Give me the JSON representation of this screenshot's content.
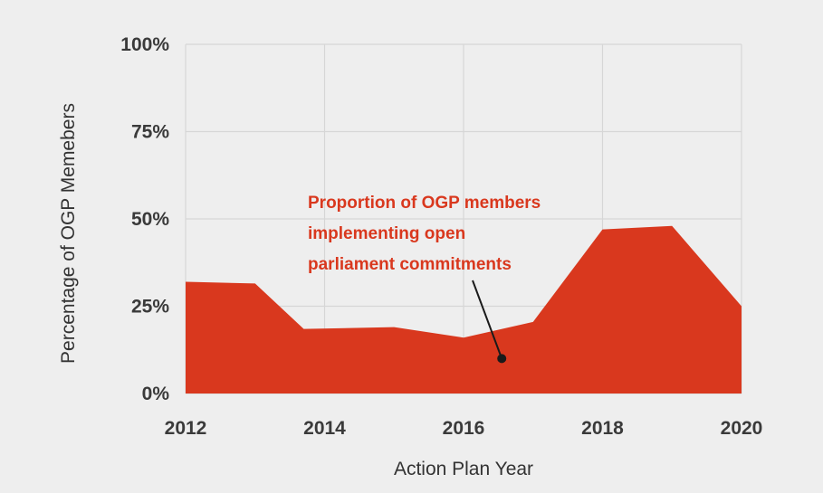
{
  "chart_data": {
    "type": "area",
    "xlabel": "Action Plan Year",
    "ylabel": "Percentage of OGP Memebers",
    "x_ticks": [
      "2012",
      "2014",
      "2016",
      "2018",
      "2020"
    ],
    "y_ticks": [
      "0%",
      "25%",
      "50%",
      "75%",
      "100%"
    ],
    "xlim": [
      2012,
      2020
    ],
    "ylim": [
      0,
      100
    ],
    "grid": true,
    "series": [
      {
        "color": "#d9381e",
        "x": [
          2012,
          2013,
          2013.7,
          2015,
          2016,
          2017,
          2018,
          2019,
          2020
        ],
        "y": [
          32,
          31.5,
          18.5,
          19,
          16,
          20.5,
          47,
          48,
          25
        ]
      }
    ],
    "annotation": {
      "lines": [
        "Proportion of OGP members",
        "implementing open",
        "parliament commitments"
      ],
      "color": "#d9381e",
      "point": {
        "x": 2016.55,
        "y": 10
      }
    }
  }
}
